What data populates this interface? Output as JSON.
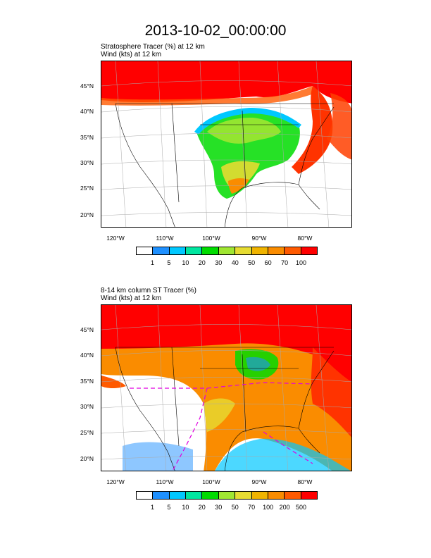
{
  "title": "2013-10-02_00:00:00",
  "panels": [
    {
      "subtitle_line1": "Stratosphere Tracer   (%)    at   12 km",
      "subtitle_line2": "Wind   (kts)    at   12 km",
      "lat_labels": [
        "45°N",
        "40°N",
        "35°N",
        "30°N",
        "25°N",
        "20°N"
      ],
      "lon_labels": [
        "120°W",
        "110°W",
        "100°W",
        "90°W",
        "80°W"
      ],
      "colorbar_labels": [
        "1",
        "5",
        "10",
        "20",
        "30",
        "40",
        "50",
        "60",
        "70",
        "100"
      ],
      "colorbar_colors": [
        "#ffffff",
        "#1e90ff",
        "#00c8ff",
        "#00e6a0",
        "#00dc00",
        "#a0e632",
        "#e6dc32",
        "#f0b400",
        "#fa8c00",
        "#ff5a00",
        "#ff0000"
      ]
    },
    {
      "subtitle_line1": "8-14 km column ST Tracer   (%)",
      "subtitle_line2": "Wind   (kts)    at   12 km",
      "lat_labels": [
        "45°N",
        "40°N",
        "35°N",
        "30°N",
        "25°N",
        "20°N"
      ],
      "lon_labels": [
        "120°W",
        "110°W",
        "100°W",
        "90°W",
        "80°W"
      ],
      "colorbar_labels": [
        "1",
        "5",
        "10",
        "20",
        "30",
        "50",
        "70",
        "100",
        "200",
        "500"
      ],
      "colorbar_colors": [
        "#ffffff",
        "#1e90ff",
        "#00c8ff",
        "#00e6a0",
        "#00dc00",
        "#a0e632",
        "#e6dc32",
        "#f0b400",
        "#fa8c00",
        "#ff5a00",
        "#ff0000"
      ]
    }
  ]
}
